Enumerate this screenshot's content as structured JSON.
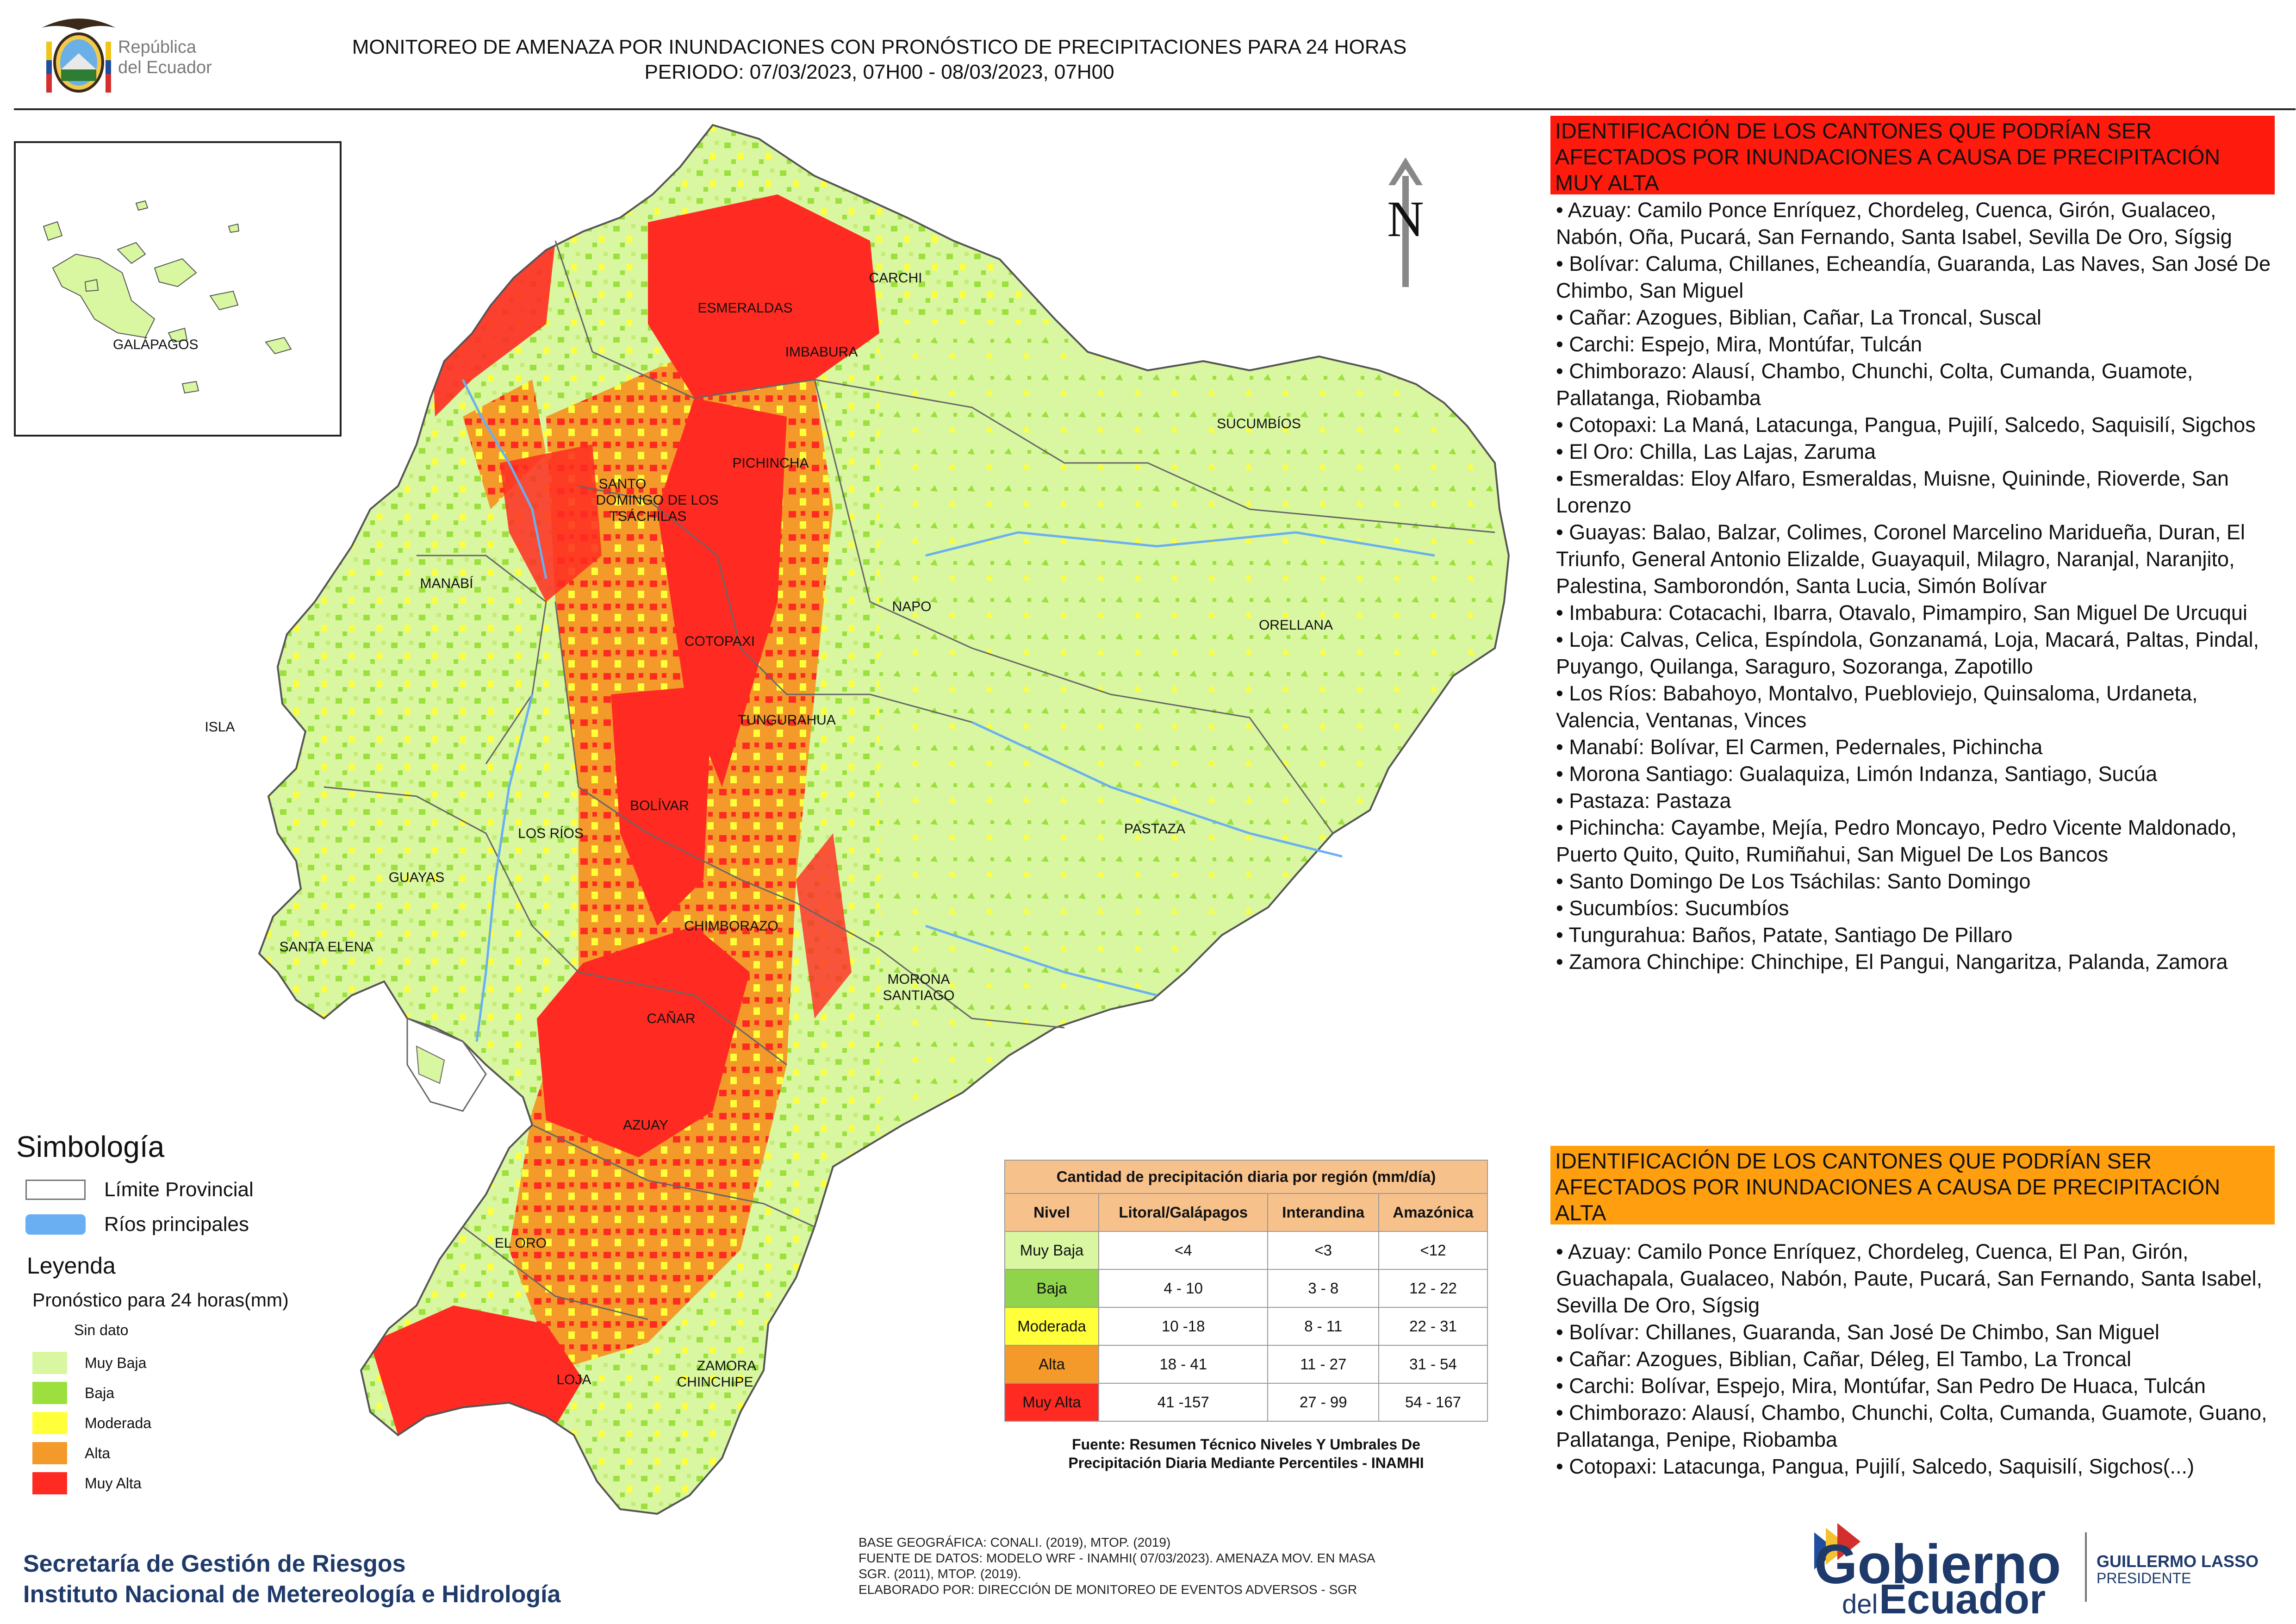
{
  "header": {
    "republica_line1": "República",
    "republica_line2": "del Ecuador",
    "title_line1": "MONITOREO DE AMENAZA POR INUNDACIONES  CON PRONÓSTICO DE  PRECIPITACIONES PARA 24 HORAS",
    "title_line2": "PERIODO: 07/03/2023, 07H00 - 08/03/2023, 07H00"
  },
  "map": {
    "north_label": "N",
    "inset_label": "GALÁPAGOS",
    "island_label": "ISLA",
    "provinces": [
      "CARCHI",
      "ESMERALDAS",
      "IMBABURA",
      "SUCUMBÍOS",
      "PICHINCHA",
      "SANTO",
      "DOMINGO DE LOS",
      "TSÁCHILAS",
      "MANABÍ",
      "NAPO",
      "ORELLANA",
      "COTOPAXI",
      "TUNGURAHUA",
      "BOLÍVAR",
      "LOS RÍOS",
      "PASTAZA",
      "GUAYAS",
      "SANTA ELENA",
      "CHIMBORAZO",
      "MORONA",
      "SANTIAGO",
      "CAÑAR",
      "AZUAY",
      "EL ORO",
      "LOJA",
      "ZAMORA",
      "CHINCHIPE"
    ],
    "colors": {
      "muy_baja": "#d8f7a0",
      "baja": "#9be03c",
      "moderada": "#ffff3a",
      "alta": "#f39a2a",
      "muy_alta": "#ff2b22",
      "river": "#6aaff2",
      "boundary": "#555555"
    }
  },
  "legend": {
    "simbologia_title": "Simbología",
    "limite_label": "Límite Provincial",
    "rios_label": "Ríos principales",
    "leyenda_title": "Leyenda",
    "pronostico_label": "Pronóstico para 24 horas(mm)",
    "classes": [
      "Sin dato",
      "Muy Baja",
      "Baja",
      "Moderada",
      "Alta",
      "Muy Alta"
    ],
    "class_colors": [
      "#ffffff",
      "#d8f7a0",
      "#9be03c",
      "#ffff3a",
      "#f39a2a",
      "#ff2b22"
    ]
  },
  "thresholds": {
    "caption": "Cantidad de precipitación diaria por región (mm/día)",
    "headers": [
      "Nivel",
      "Litoral/Galápagos",
      "Interandina",
      "Amazónica"
    ],
    "rows": [
      {
        "nivel": "Muy Baja",
        "litoral": "<4",
        "interandina": "<3",
        "amazonica": "<12",
        "color": "#d8f7a0"
      },
      {
        "nivel": "Baja",
        "litoral": "4 - 10",
        "interandina": "3 - 8",
        "amazonica": "12 - 22",
        "color": "#8fd44a"
      },
      {
        "nivel": "Moderada",
        "litoral": "10 -18",
        "interandina": "8 - 11",
        "amazonica": "22 - 31",
        "color": "#ffff3a"
      },
      {
        "nivel": "Alta",
        "litoral": "18 - 41",
        "interandina": "11 - 27",
        "amazonica": "31 - 54",
        "color": "#f39a2a"
      },
      {
        "nivel": "Muy Alta",
        "litoral": "41 -157",
        "interandina": "27 - 99",
        "amazonica": "54 - 167",
        "color": "#ff2b22"
      }
    ],
    "source_line1": "Fuente: Resumen Técnico Niveles Y Umbrales De",
    "source_line2": "Precipitación Diaria Mediante Percentiles - INAMHI"
  },
  "panel_red": {
    "heading": "IDENTIFICACIÓN DE LOS CANTONES QUE PODRÍAN SER AFECTADOS POR INUNDACIONES  A CAUSA DE PRECIPITACIÓN MUY ALTA",
    "items": [
      "• Azuay: Camilo Ponce Enríquez, Chordeleg, Cuenca, Girón, Gualaceo, Nabón, Oña, Pucará, San Fernando, Santa Isabel, Sevilla De Oro, Sígsig",
      "• Bolívar: Caluma, Chillanes, Echeandía, Guaranda, Las Naves, San José De Chimbo, San Miguel",
      "• Cañar: Azogues, Biblian, Cañar, La Troncal, Suscal",
      "• Carchi: Espejo, Mira, Montúfar, Tulcán",
      "• Chimborazo: Alausí, Chambo, Chunchi, Colta, Cumanda, Guamote, Pallatanga, Riobamba",
      "• Cotopaxi: La Maná, Latacunga, Pangua, Pujilí, Salcedo, Saquisilí, Sigchos",
      "• El Oro: Chilla, Las Lajas, Zaruma",
      "• Esmeraldas: Eloy Alfaro, Esmeraldas, Muisne, Quininde, Rioverde, San Lorenzo",
      "• Guayas: Balao, Balzar, Colimes, Coronel Marcelino Maridueña, Duran, El Triunfo, General Antonio Elizalde, Guayaquil, Milagro, Naranjal, Naranjito, Palestina, Samborondón, Santa Lucia, Simón Bolívar",
      "• Imbabura: Cotacachi, Ibarra, Otavalo, Pimampiro, San Miguel De Urcuqui",
      "• Loja: Calvas, Celica, Espíndola, Gonzanamá, Loja, Macará, Paltas, Pindal, Puyango, Quilanga, Saraguro, Sozoranga, Zapotillo",
      "• Los Ríos: Babahoyo, Montalvo, Puebloviejo, Quinsaloma, Urdaneta, Valencia, Ventanas, Vinces",
      "• Manabí: Bolívar, El Carmen, Pedernales, Pichincha",
      "• Morona Santiago: Gualaquiza, Limón Indanza, Santiago, Sucúa",
      "• Pastaza: Pastaza",
      "• Pichincha: Cayambe, Mejía, Pedro Moncayo, Pedro Vicente Maldonado, Puerto Quito, Quito, Rumiñahui, San Miguel De Los Bancos",
      "• Santo Domingo De Los Tsáchilas: Santo Domingo",
      "• Sucumbíos: Sucumbíos",
      "• Tungurahua: Baños, Patate, Santiago De Pillaro",
      "• Zamora Chinchipe: Chinchipe, El Pangui, Nangaritza, Palanda, Zamora"
    ]
  },
  "panel_orange": {
    "heading": "IDENTIFICACIÓN DE LOS CANTONES QUE  PODRÍAN SER AFECTADOS POR INUNDACIONES  A CAUSA DE PRECIPITACIÓN ALTA",
    "items": [
      "• Azuay: Camilo Ponce Enríquez, Chordeleg, Cuenca, El Pan, Girón, Guachapala, Gualaceo, Nabón, Paute, Pucará, San Fernando, Santa Isabel, Sevilla De Oro, Sígsig",
      "• Bolívar: Chillanes, Guaranda, San José De Chimbo, San Miguel",
      "• Cañar: Azogues, Biblian, Cañar, Déleg, El Tambo, La Troncal",
      "• Carchi: Bolívar, Espejo, Mira, Montúfar, San Pedro De Huaca, Tulcán",
      "• Chimborazo: Alausí, Chambo, Chunchi, Colta, Cumanda, Guamote, Guano, Pallatanga, Penipe, Riobamba",
      "• Cotopaxi: Latacunga, Pangua, Pujilí, Salcedo, Saquisilí, Sigchos(...)"
    ]
  },
  "footer": {
    "inst_line1": "Secretaría de Gestión de Riesgos",
    "inst_line2": "Instituto Nacional de Metereología e Hidrología",
    "credit1": "BASE GEOGRÁFICA: CONALI. (2019), MTOP. (2019)",
    "credit2": "FUENTE DE DATOS: MODELO WRF - INAMHI( 07/03/2023).  AMENAZA MOV. EN MASA",
    "credit3": "SGR. (2011), MTOP. (2019).",
    "credit4": "ELABORADO POR: DIRECCIÓN DE MONITOREO DE EVENTOS ADVERSOS - SGR",
    "gob_word1": "Gobierno",
    "gob_word2a": "del",
    "gob_word2b": "Ecuador",
    "pres_name": "GUILLERMO LASSO",
    "pres_title": "PRESIDENTE"
  }
}
